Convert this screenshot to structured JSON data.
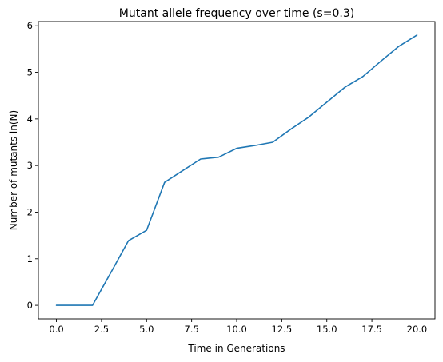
{
  "chart_data": {
    "type": "line",
    "title": "Mutant allele frequency over time (s=0.3)",
    "xlabel": "Time in Generations",
    "ylabel": "Number of mutants ln(N)",
    "xlim": [
      -1,
      21
    ],
    "ylim": [
      -0.29,
      6.09
    ],
    "xticks": [
      0.0,
      2.5,
      5.0,
      7.5,
      10.0,
      12.5,
      15.0,
      17.5,
      20.0
    ],
    "xtick_labels": [
      "0.0",
      "2.5",
      "5.0",
      "7.5",
      "10.0",
      "12.5",
      "15.0",
      "17.5",
      "20.0"
    ],
    "yticks": [
      0,
      1,
      2,
      3,
      4,
      5,
      6
    ],
    "ytick_labels": [
      "0",
      "1",
      "2",
      "3",
      "4",
      "5",
      "6"
    ],
    "grid": false,
    "series": [
      {
        "color": "#1f77b4",
        "x": [
          0,
          1,
          2,
          3,
          4,
          5,
          6,
          7,
          8,
          9,
          10,
          11,
          12,
          13,
          14,
          15,
          16,
          17,
          18,
          19,
          20
        ],
        "y": [
          0,
          0,
          0,
          0.69,
          1.39,
          1.61,
          2.64,
          2.89,
          3.14,
          3.18,
          3.37,
          3.43,
          3.5,
          3.78,
          4.04,
          4.36,
          4.68,
          4.91,
          5.24,
          5.56,
          5.8
        ]
      }
    ]
  }
}
